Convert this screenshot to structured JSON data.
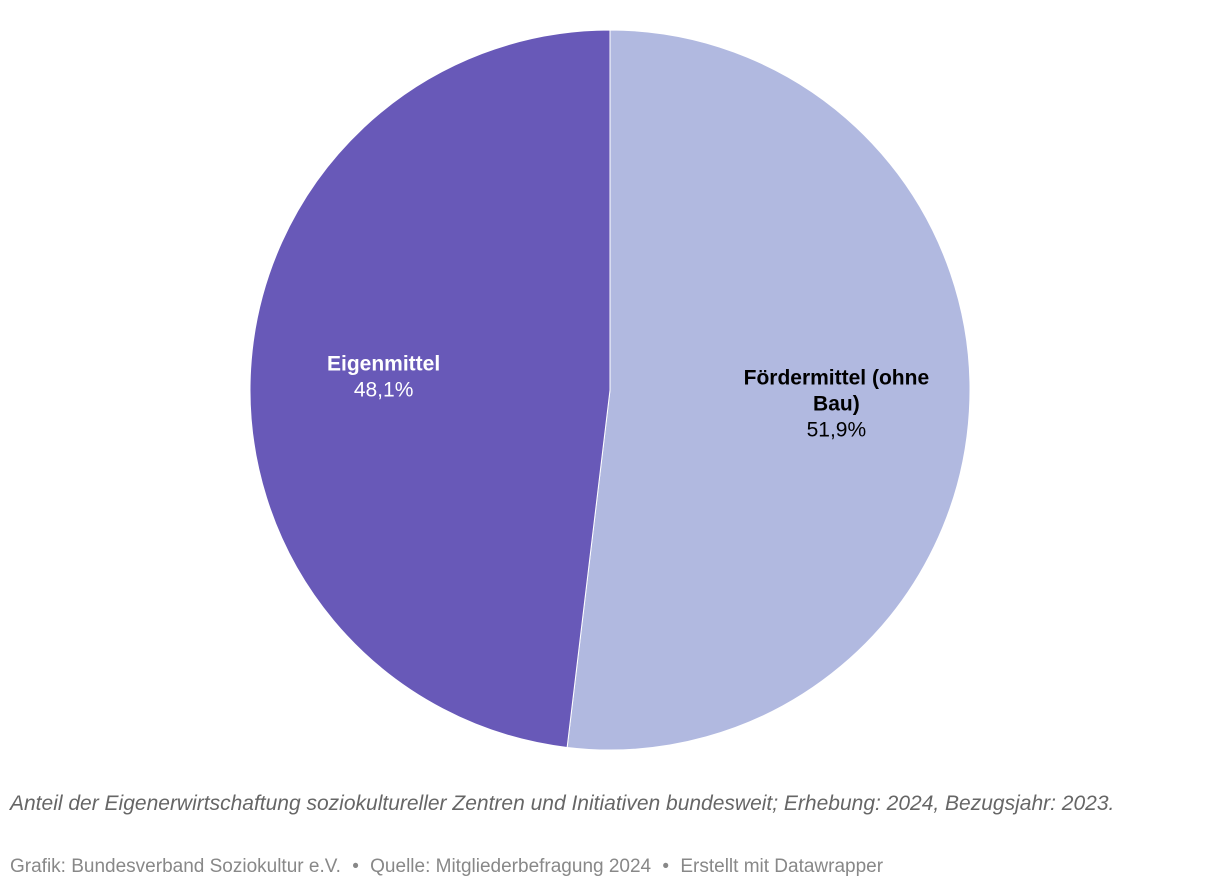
{
  "chart_data": {
    "type": "pie",
    "slices": [
      {
        "label_lines": [
          "Fördermittel (ohne",
          "Bau)"
        ],
        "value": 51.9,
        "value_label": "51,9%",
        "color": "#b1b9e0",
        "text_color": "#000000"
      },
      {
        "label_lines": [
          "Eigenmittel"
        ],
        "value": 48.1,
        "value_label": "48,1%",
        "color": "#6859b8",
        "text_color": "#ffffff"
      }
    ],
    "start_angle_deg": 0,
    "direction": "clockwise",
    "legend": "none"
  },
  "notes": "Anteil der Eigenerwirtschaftung soziokultureller Zentren und Initiativen bundesweit; Erhebung: 2024, Bezugsjahr: 2023.",
  "byline": {
    "grafik": "Grafik: Bundesverband Soziokultur e.V.",
    "separator": "•",
    "quelle": "Quelle: Mitgliederbefragung 2024",
    "erstellt": "Erstellt mit Datawrapper"
  }
}
